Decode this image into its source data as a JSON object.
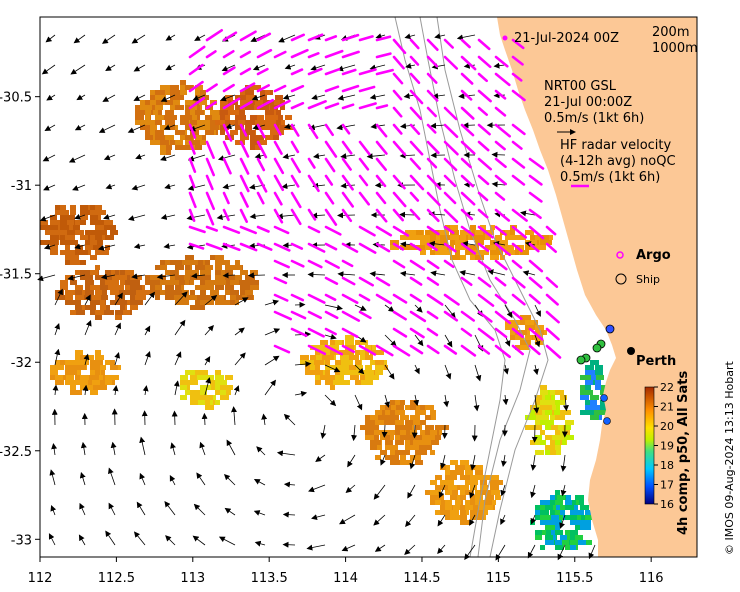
{
  "map": {
    "date_label": "21-Jul-2024 00Z",
    "depth_contours": [
      "200m",
      "1000m"
    ],
    "model": {
      "line1": "NRT00 GSL",
      "line2": "21-Jul 00:00Z",
      "line3": "0.5m/s (1kt 6h)"
    },
    "hf_radar": {
      "line1": "HF radar velocity",
      "line2": "(4-12h avg) noQC",
      "line3": "0.5m/s (1kt 6h)",
      "color": "#ff00ff"
    },
    "legend": {
      "argo": "Argo",
      "ship": "Ship"
    },
    "city": "Perth",
    "credit": "© IMOS 09-Aug-2024 13:13 Hobart",
    "land_color": "#fcc896"
  },
  "axes": {
    "x_ticks": [
      "112",
      "112.5",
      "113",
      "113.5",
      "114",
      "114.5",
      "115",
      "115.5",
      "116"
    ],
    "y_ticks": [
      "-30.5",
      "-31",
      "-31.5",
      "-32",
      "-32.5",
      "-33"
    ],
    "xlim": [
      112,
      116.3
    ],
    "ylim": [
      -33.1,
      -30.05
    ]
  },
  "colorbar": {
    "title": "4h comp, p50, All Sats",
    "ticks": [
      "22",
      "21",
      "20",
      "19",
      "18",
      "17",
      "16"
    ],
    "range": [
      16,
      22
    ]
  }
}
